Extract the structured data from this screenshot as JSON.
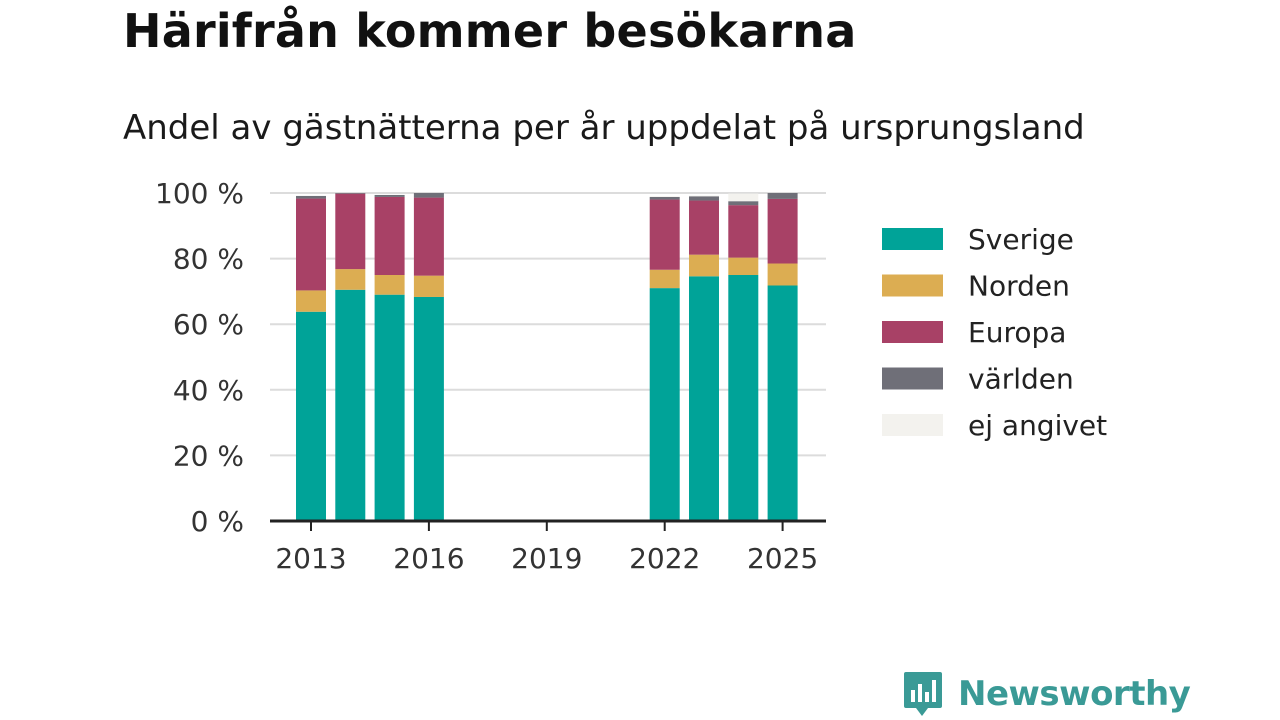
{
  "title": "Härifrån kommer besökarna",
  "subtitle": "Andel av gästnätterna per år uppdelat på ursprungsland",
  "brand": "Newsworthy",
  "chart_data": {
    "type": "bar",
    "stacked": true,
    "title": "Härifrån kommer besökarna",
    "subtitle": "Andel av gästnätterna per år uppdelat på ursprungsland",
    "xlabel": "",
    "ylabel": "",
    "categories": [
      "2013",
      "2014",
      "2015",
      "2016",
      "2017",
      "2018",
      "2019",
      "2020",
      "2021",
      "2022",
      "2023",
      "2024",
      "2025"
    ],
    "x_tick_labels": [
      "2013",
      "2016",
      "2019",
      "2022",
      "2025"
    ],
    "y_tick_labels": [
      "0 %",
      "20 %",
      "40 %",
      "60 %",
      "80 %",
      "100 %"
    ],
    "ylim": [
      0,
      100
    ],
    "grid": true,
    "legend_position": "right",
    "series": [
      {
        "name": "Sverige",
        "color": "#00a398",
        "values": [
          63.8,
          70.5,
          69.0,
          68.3,
          null,
          null,
          null,
          null,
          null,
          71.0,
          74.6,
          75.0,
          71.8
        ]
      },
      {
        "name": "Norden",
        "color": "#dcad52",
        "values": [
          6.5,
          6.3,
          6.0,
          6.5,
          null,
          null,
          null,
          null,
          null,
          5.6,
          6.6,
          5.3,
          6.7
        ]
      },
      {
        "name": "Europa",
        "color": "#a84166",
        "values": [
          28.0,
          23.0,
          23.8,
          23.8,
          null,
          null,
          null,
          null,
          null,
          21.4,
          16.5,
          16.0,
          19.7
        ]
      },
      {
        "name": "världen",
        "color": "#6f6f78",
        "values": [
          0.8,
          0.2,
          0.6,
          1.4,
          null,
          null,
          null,
          null,
          null,
          0.8,
          1.3,
          1.2,
          1.8
        ]
      },
      {
        "name": "ej angivet",
        "color": "#f3f2ee",
        "values": [
          0.0,
          0.0,
          0.0,
          0.0,
          null,
          null,
          null,
          null,
          null,
          0.2,
          0.2,
          2.3,
          0.0
        ]
      }
    ]
  }
}
